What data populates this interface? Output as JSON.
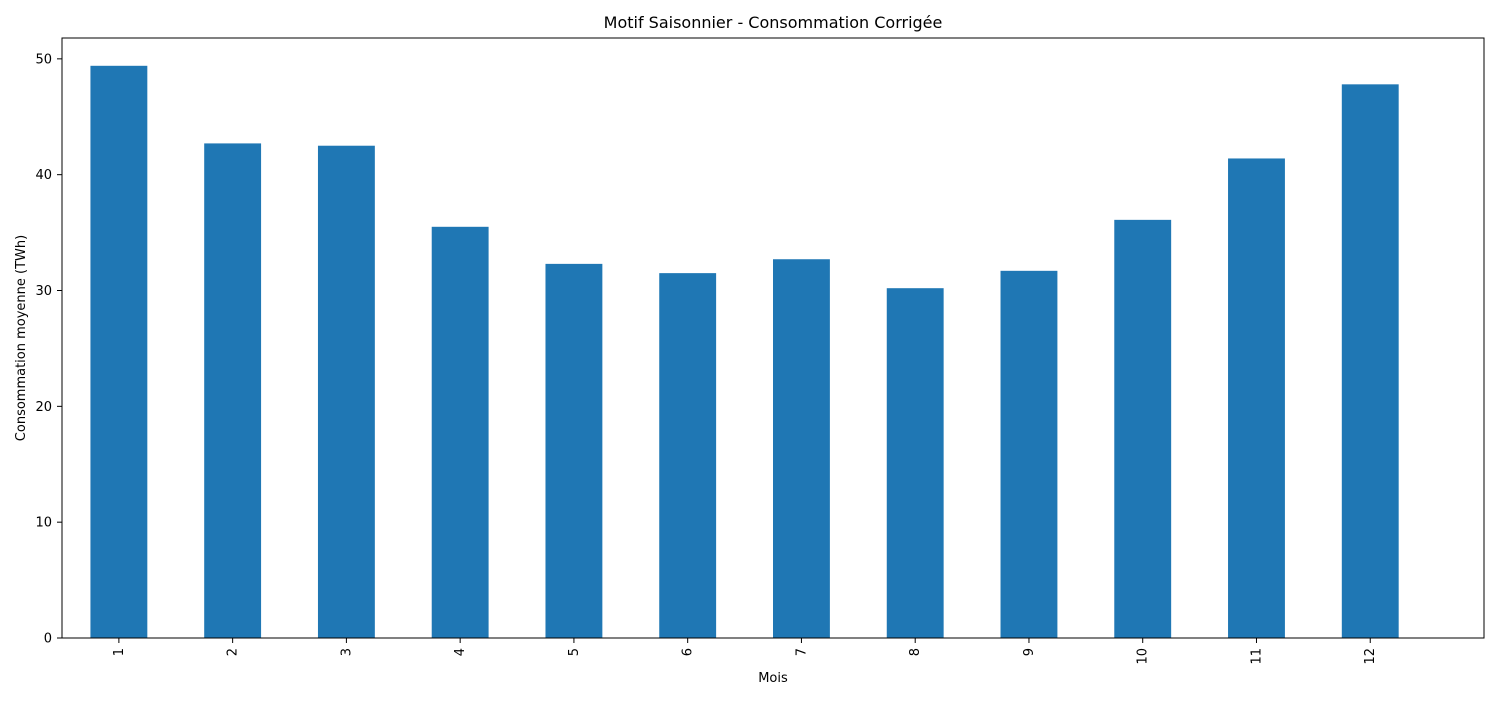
{
  "chart_data": {
    "type": "bar",
    "title": "Motif Saisonnier - Consommation Corrigée",
    "xlabel": "Mois",
    "ylabel": "Consommation moyenne (TWh)",
    "categories": [
      "1",
      "2",
      "3",
      "4",
      "5",
      "6",
      "7",
      "8",
      "9",
      "10",
      "11",
      "12"
    ],
    "values": [
      49.4,
      42.7,
      42.5,
      35.5,
      32.3,
      31.5,
      32.7,
      30.2,
      31.7,
      36.1,
      41.4,
      47.8
    ],
    "ylim": [
      0,
      51.8
    ],
    "yticks": [
      0,
      10,
      20,
      30,
      40,
      50
    ],
    "grid": false,
    "bar_color": "#1f77b4"
  }
}
